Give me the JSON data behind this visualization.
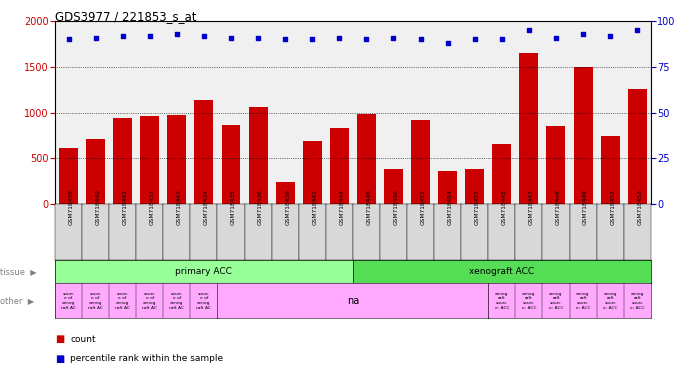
{
  "title": "GDS3977 / 221853_s_at",
  "samples": [
    "GSM718438",
    "GSM718440",
    "GSM718442",
    "GSM718437",
    "GSM718443",
    "GSM718434",
    "GSM718435",
    "GSM718436",
    "GSM718439",
    "GSM718441",
    "GSM718444",
    "GSM718446",
    "GSM718450",
    "GSM718451",
    "GSM718454",
    "GSM718455",
    "GSM718445",
    "GSM718447",
    "GSM718448",
    "GSM718449",
    "GSM718452",
    "GSM718453"
  ],
  "counts": [
    620,
    710,
    940,
    960,
    980,
    1140,
    870,
    1060,
    240,
    695,
    830,
    990,
    380,
    920,
    360,
    390,
    660,
    1650,
    850,
    1500,
    750,
    1260
  ],
  "percentiles": [
    90,
    91,
    92,
    92,
    93,
    92,
    91,
    91,
    90,
    90,
    91,
    90,
    91,
    90,
    88,
    90,
    90,
    95,
    91,
    93,
    92,
    95
  ],
  "bar_color": "#cc0000",
  "dot_color": "#0000cc",
  "primary_color": "#99ff99",
  "xenograft_color": "#55dd55",
  "other_color": "#ffaaff",
  "tick_bg_color": "#d8d8d8",
  "bg_color": "#f0f0f0",
  "ylim_left": [
    0,
    2000
  ],
  "ylim_right": [
    0,
    100
  ],
  "yticks_left": [
    0,
    500,
    1000,
    1500,
    2000
  ],
  "yticks_right": [
    0,
    25,
    50,
    75,
    100
  ],
  "primary_count": 11,
  "xeno_count": 11,
  "sec1_count": 6,
  "sec2_count": 10,
  "sec3_count": 6
}
